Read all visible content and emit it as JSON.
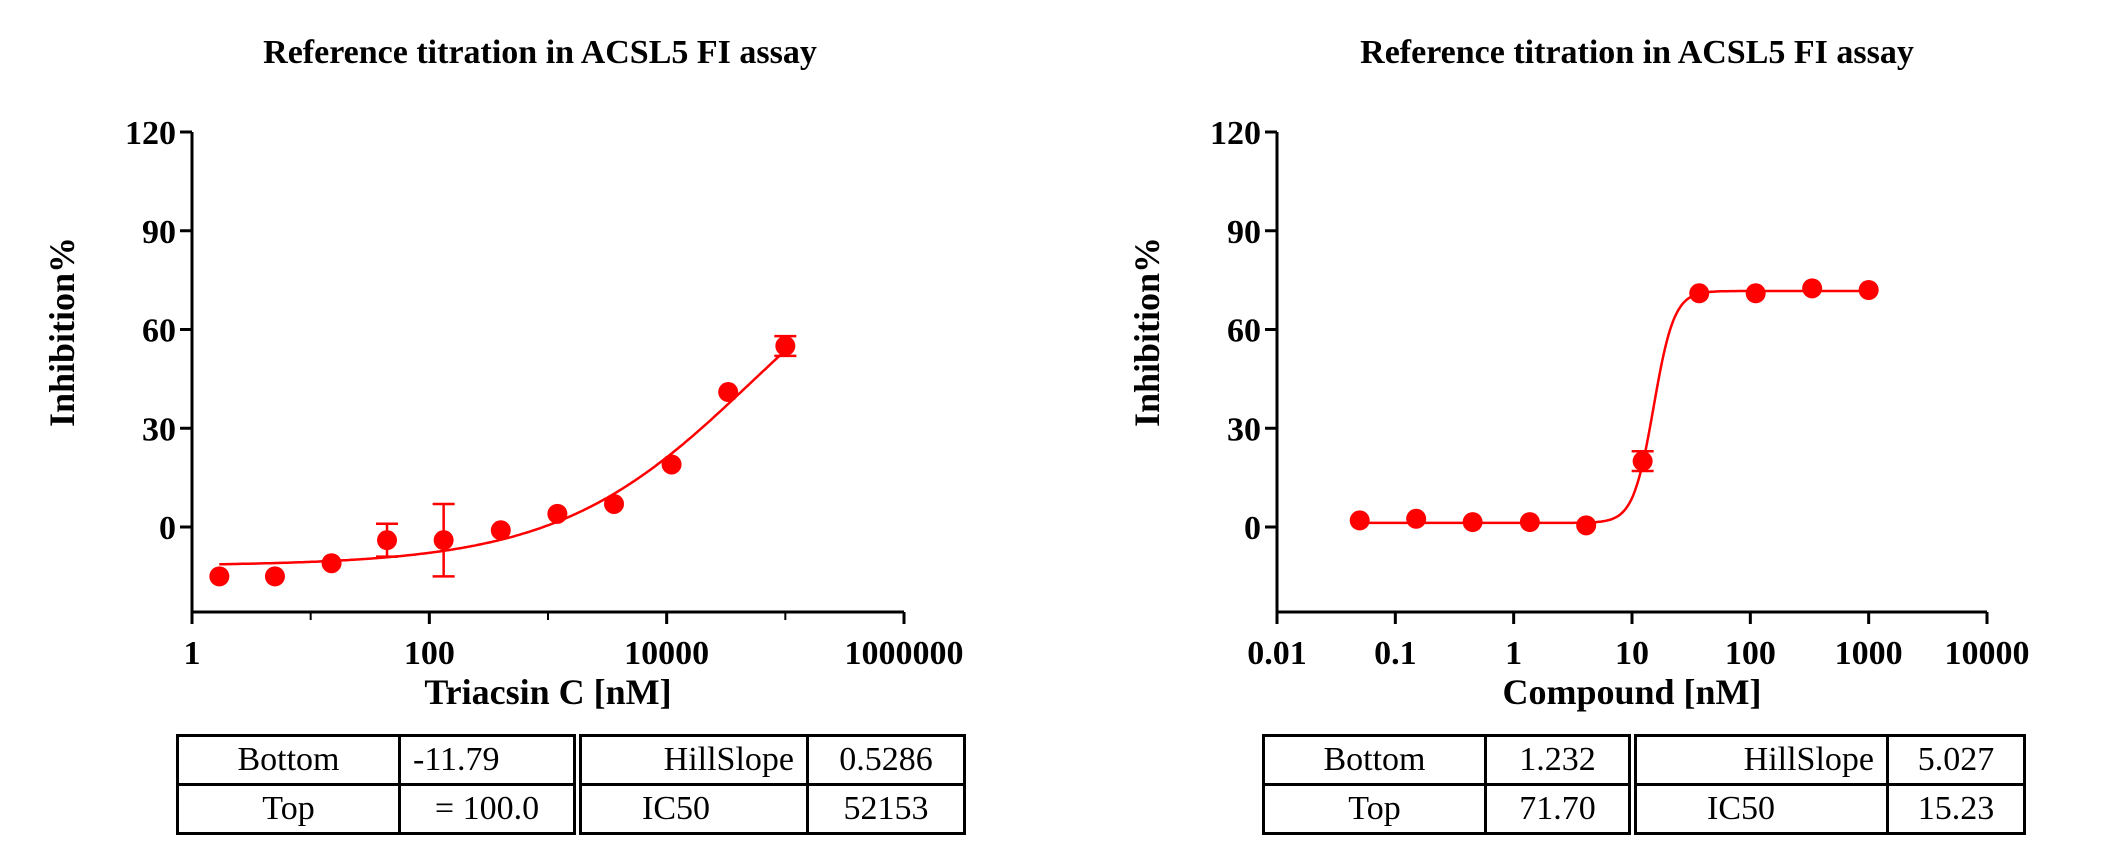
{
  "charts": [
    {
      "id": "left",
      "title": "Reference titration in ACSL5 FI assay",
      "xlabel": "Triacsin C [nM]",
      "ylabel": "Inhibition%",
      "x_ticks": [
        "1",
        "100",
        "10000",
        "1000000"
      ],
      "y_ticks": [
        "0",
        "30",
        "60",
        "90",
        "120"
      ],
      "params": [
        {
          "name": "Bottom",
          "value": "-11.79"
        },
        {
          "name": "HillSlope",
          "value": "0.5286"
        },
        {
          "name": "Top",
          "value": "= 100.0"
        },
        {
          "name": "IC50",
          "value": "52153"
        }
      ]
    },
    {
      "id": "right",
      "title": "Reference titration in ACSL5 FI assay",
      "xlabel": "Compound [nM]",
      "ylabel": "Inhibition%",
      "x_ticks": [
        "0.01",
        "0.1",
        "1",
        "10",
        "100",
        "1000",
        "10000"
      ],
      "y_ticks": [
        "0",
        "30",
        "60",
        "90",
        "120"
      ],
      "params": [
        {
          "name": "Bottom",
          "value": "1.232"
        },
        {
          "name": "HillSlope",
          "value": "5.027"
        },
        {
          "name": "Top",
          "value": "71.70"
        },
        {
          "name": "IC50",
          "value": "15.23"
        }
      ]
    }
  ],
  "chart_data": [
    {
      "type": "scatter",
      "title": "Reference titration in ACSL5 FI assay",
      "xlabel": "Triacsin C [nM]",
      "ylabel": "Inhibition%",
      "x_scale": "log",
      "xlim": [
        1,
        1000000
      ],
      "ylim": [
        -25,
        120
      ],
      "color": "#ff0000",
      "x": [
        1.7,
        5,
        15,
        44,
        132,
        400,
        1200,
        3600,
        11000,
        33000,
        100000
      ],
      "y": [
        -15,
        -15,
        -11,
        -4,
        -4,
        -1,
        4,
        7,
        19,
        41,
        55
      ],
      "error": [
        0,
        0,
        0,
        5,
        11,
        0,
        0,
        0,
        0,
        0,
        3
      ],
      "fit": {
        "model": "four-parameter logistic",
        "bottom": -11.79,
        "top": 100.0,
        "hillslope": 0.5286,
        "ic50": 52153
      }
    },
    {
      "type": "scatter",
      "title": "Reference titration in ACSL5 FI assay",
      "xlabel": "Compound [nM]",
      "ylabel": "Inhibition%",
      "x_scale": "log",
      "xlim": [
        0.01,
        10000
      ],
      "ylim": [
        -25,
        120
      ],
      "color": "#ff0000",
      "x": [
        0.05,
        0.15,
        0.45,
        1.37,
        4.1,
        12.3,
        37,
        111,
        333,
        1000
      ],
      "y": [
        2,
        2.5,
        1.5,
        1.5,
        0.5,
        20,
        71,
        71,
        72.5,
        72
      ],
      "error": [
        0,
        0,
        0,
        0,
        0,
        3,
        0,
        0,
        0,
        0
      ],
      "fit": {
        "model": "four-parameter logistic",
        "bottom": 1.232,
        "top": 71.7,
        "hillslope": 5.027,
        "ic50": 15.23
      }
    }
  ]
}
